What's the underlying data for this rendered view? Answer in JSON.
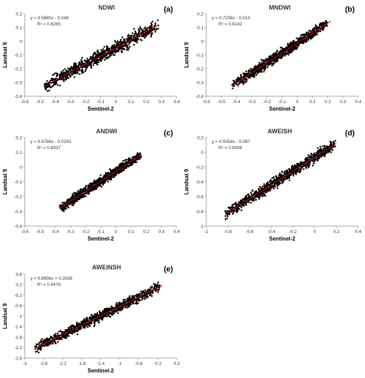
{
  "chart_data": [
    {
      "type": "scatter",
      "panel_label": "(a)",
      "title": "NDWI",
      "xlabel": "Sentinel-2",
      "ylabel": "Landsat 9",
      "xlim": [
        -0.6,
        0.4
      ],
      "ylim": [
        -0.4,
        0.2
      ],
      "xticks": [
        -0.6,
        -0.5,
        -0.4,
        -0.3,
        -0.2,
        -0.1,
        0,
        0.1,
        0.2,
        0.3,
        0.4
      ],
      "yticks": [
        -0.4,
        -0.3,
        -0.2,
        -0.1,
        0,
        0.1,
        0.2
      ],
      "equation": "y = 0.5885x - 0.049",
      "r2_label": "R² = 0.8265",
      "trendline": {
        "slope": 0.5885,
        "intercept": -0.049,
        "x_range": [
          -0.47,
          0.28
        ],
        "color": "#e00000"
      },
      "points": {
        "count": 900,
        "x_range": [
          -0.47,
          0.28
        ],
        "spread": 0.045,
        "color": "#000000"
      }
    },
    {
      "type": "scatter",
      "panel_label": "(b)",
      "title": "MNDWI",
      "xlabel": "Sentinel-2",
      "ylabel": "Landsat 9",
      "xlim": [
        -0.6,
        0.4
      ],
      "ylim": [
        -0.4,
        0.2
      ],
      "xticks": [
        -0.6,
        -0.5,
        -0.4,
        -0.3,
        -0.2,
        -0.1,
        0,
        0.1,
        0.2,
        0.3,
        0.4
      ],
      "yticks": [
        -0.4,
        -0.3,
        -0.2,
        -0.1,
        0,
        0.1,
        0.2
      ],
      "equation": "y = 0.7238x - 0.013",
      "r2_label": "R² = 0.9142",
      "trendline": {
        "slope": 0.7238,
        "intercept": -0.013,
        "x_range": [
          -0.43,
          0.22
        ],
        "color": "#e00000"
      },
      "points": {
        "count": 1000,
        "x_range": [
          -0.43,
          0.2
        ],
        "spread": 0.035,
        "color": "#000000"
      }
    },
    {
      "type": "scatter",
      "panel_label": "(c)",
      "title": "ANDWI",
      "xlabel": "Sentinel-2",
      "ylabel": "Landsat 9",
      "xlim": [
        -0.6,
        0.4
      ],
      "ylim": [
        -0.4,
        0.2
      ],
      "xticks": [
        -0.6,
        -0.5,
        -0.4,
        -0.3,
        -0.2,
        -0.1,
        0,
        0.1,
        0.2,
        0.3,
        0.4
      ],
      "yticks": [
        -0.4,
        -0.3,
        -0.2,
        -0.1,
        0,
        0.1,
        0.2
      ],
      "equation": "y = 0.6789x - 0.0293",
      "r2_label": "R² = 0.8937",
      "trendline": {
        "slope": 0.6789,
        "intercept": -0.0293,
        "x_range": [
          -0.37,
          0.17
        ],
        "color": "#e00000"
      },
      "points": {
        "count": 1000,
        "x_range": [
          -0.37,
          0.17
        ],
        "spread": 0.03,
        "color": "#000000"
      }
    },
    {
      "type": "scatter",
      "panel_label": "(d)",
      "title": "AWEISH",
      "xlabel": "Sentinel-2",
      "ylabel": "Landsat 9",
      "xlim": [
        -1,
        0.4
      ],
      "ylim": [
        -1,
        0.2
      ],
      "xticks": [
        -1,
        -0.8,
        -0.6,
        -0.4,
        -0.2,
        0,
        0.2,
        0.4
      ],
      "yticks": [
        -1,
        -0.8,
        -0.6,
        -0.4,
        -0.2,
        0,
        0.2
      ],
      "equation": "y = 0.9354x - 0.067",
      "r2_label": "R² = 0.9308",
      "trendline": {
        "slope": 0.9354,
        "intercept": -0.067,
        "x_range": [
          -0.83,
          0.2
        ],
        "color": "#e00000"
      },
      "points": {
        "count": 1000,
        "x_range": [
          -0.83,
          0.19
        ],
        "spread": 0.07,
        "color": "#000000"
      }
    },
    {
      "type": "scatter",
      "panel_label": "(e)",
      "title": "AWEINSH",
      "xlabel": "Sentinel-2",
      "ylabel": "Landsat 9",
      "xlim": [
        -3,
        0.2
      ],
      "ylim": [
        -2.6,
        0.6
      ],
      "xticks": [
        -3,
        -2.6,
        -2.2,
        -1.8,
        -1.4,
        -1,
        -0.6,
        -0.2,
        0.2
      ],
      "yticks": [
        -2.6,
        -2.2,
        -1.8,
        -1.4,
        -1,
        -0.6,
        -0.2,
        0.2,
        0.6
      ],
      "equation": "y = 0.8956x + 0.2639",
      "r2_label": "R² = 0.9476",
      "trendline": {
        "slope": 0.8956,
        "intercept": 0.2639,
        "x_range": [
          -2.8,
          -0.1
        ],
        "color": "#e00000"
      },
      "points": {
        "count": 1000,
        "x_range": [
          -2.8,
          -0.15
        ],
        "spread": 0.18,
        "color": "#000000"
      }
    }
  ]
}
